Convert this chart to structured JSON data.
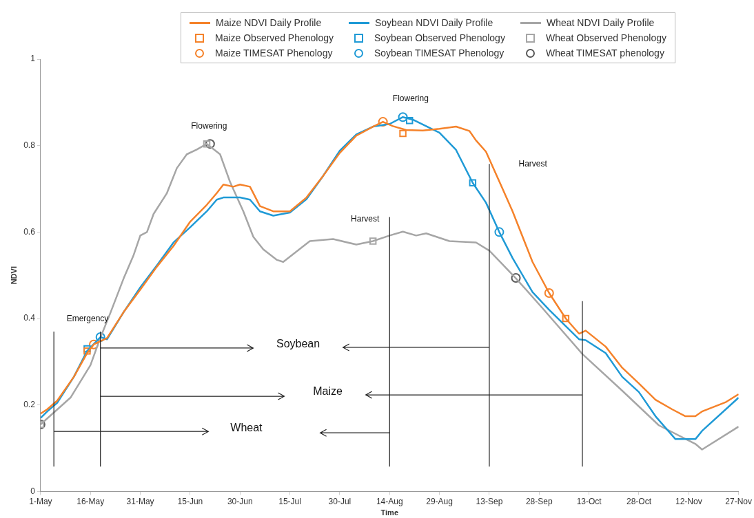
{
  "chart_data": {
    "type": "line",
    "xlabel": "Time",
    "ylabel": "NDVI",
    "xlim": [
      "--05-01",
      "--11-27"
    ],
    "xticks": [
      {
        "value": "--05-01",
        "label": "1-May"
      },
      {
        "value": "--05-16",
        "label": "16-May"
      },
      {
        "value": "--05-31",
        "label": "31-May"
      },
      {
        "value": "--06-15",
        "label": "15-Jun"
      },
      {
        "value": "--06-30",
        "label": "30-Jun"
      },
      {
        "value": "--07-15",
        "label": "15-Jul"
      },
      {
        "value": "--07-30",
        "label": "30-Jul"
      },
      {
        "value": "--08-14",
        "label": "14-Aug"
      },
      {
        "value": "--08-29",
        "label": "29-Aug"
      },
      {
        "value": "--09-13",
        "label": "13-Sep"
      },
      {
        "value": "--09-28",
        "label": "28-Sep"
      },
      {
        "value": "--10-13",
        "label": "13-Oct"
      },
      {
        "value": "--10-28",
        "label": "28-Oct"
      },
      {
        "value": "--11-12",
        "label": "12-Nov"
      },
      {
        "value": "--11-27",
        "label": "27-Nov"
      }
    ],
    "ylim": [
      0,
      1
    ],
    "yticks": [
      0,
      0.2,
      0.4,
      0.6,
      0.8,
      1
    ],
    "grid": false,
    "legend": "top",
    "series": [
      {
        "name": "Maize NDVI Daily Profile",
        "type": "line",
        "marker": "none",
        "color": "#f5822a",
        "x": [
          "--05-01",
          "--05-03",
          "--05-06",
          "--05-11",
          "--05-15",
          "--05-17",
          "--05-21",
          "--05-26",
          "--05-31",
          "--06-05",
          "--06-10",
          "--06-15",
          "--06-20",
          "--06-23",
          "--06-25",
          "--06-28",
          "--06-30",
          "--07-03",
          "--07-06",
          "--07-10",
          "--07-15",
          "--07-20",
          "--07-25",
          "--07-30",
          "--08-04",
          "--08-09",
          "--08-12",
          "--08-15",
          "--08-19",
          "--08-24",
          "--08-29",
          "--09-03",
          "--09-07",
          "--09-09",
          "--09-12",
          "--09-17",
          "--09-20",
          "--09-26",
          "--10-01",
          "--10-06",
          "--10-10",
          "--10-12",
          "--10-18",
          "--10-23",
          "--10-28",
          "--11-02",
          "--11-07",
          "--11-11",
          "--11-14",
          "--11-16",
          "--11-23",
          "--11-27"
        ],
        "values": [
          0.18,
          0.19,
          0.21,
          0.265,
          0.32,
          0.34,
          0.355,
          0.415,
          0.467,
          0.52,
          0.568,
          0.624,
          0.663,
          0.69,
          0.71,
          0.705,
          0.71,
          0.705,
          0.66,
          0.648,
          0.648,
          0.68,
          0.73,
          0.783,
          0.823,
          0.844,
          0.855,
          0.845,
          0.836,
          0.835,
          0.839,
          0.844,
          0.834,
          0.812,
          0.786,
          0.7,
          0.648,
          0.531,
          0.459,
          0.4,
          0.365,
          0.372,
          0.335,
          0.286,
          0.25,
          0.212,
          0.19,
          0.174,
          0.174,
          0.185,
          0.206,
          0.225
        ]
      },
      {
        "name": "Soybean NDVI Daily Profile",
        "type": "line",
        "marker": "none",
        "color": "#1f9ad6",
        "x": [
          "--05-01",
          "--05-03",
          "--05-06",
          "--05-11",
          "--05-15",
          "--05-19",
          "--05-21",
          "--05-26",
          "--05-31",
          "--06-05",
          "--06-10",
          "--06-15",
          "--06-20",
          "--06-23",
          "--06-25",
          "--06-30",
          "--07-03",
          "--07-06",
          "--07-10",
          "--07-15",
          "--07-20",
          "--07-25",
          "--07-30",
          "--08-04",
          "--08-09",
          "--08-14",
          "--08-18",
          "--08-21",
          "--08-29",
          "--09-03",
          "--09-08",
          "--09-12",
          "--09-16",
          "--09-20",
          "--09-26",
          "--10-01",
          "--10-10",
          "--10-12",
          "--10-18",
          "--10-23",
          "--10-28",
          "--11-02",
          "--11-08",
          "--11-14",
          "--11-16",
          "--11-27"
        ],
        "values": [
          0.17,
          0.185,
          0.205,
          0.265,
          0.325,
          0.357,
          0.352,
          0.415,
          0.472,
          0.523,
          0.576,
          0.611,
          0.648,
          0.675,
          0.68,
          0.68,
          0.675,
          0.648,
          0.638,
          0.645,
          0.676,
          0.73,
          0.788,
          0.826,
          0.844,
          0.85,
          0.866,
          0.86,
          0.83,
          0.79,
          0.714,
          0.668,
          0.6,
          0.54,
          0.461,
          0.42,
          0.352,
          0.35,
          0.32,
          0.265,
          0.23,
          0.174,
          0.121,
          0.121,
          0.14,
          0.217
        ]
      },
      {
        "name": "Wheat NDVI Daily Profile",
        "type": "line",
        "marker": "none",
        "color": "#a6a6a6",
        "x": [
          "--05-01",
          "--05-10",
          "--05-16",
          "--05-19",
          "--05-22",
          "--05-26",
          "--05-29",
          "--05-31",
          "--06-02",
          "--06-04",
          "--06-08",
          "--06-11",
          "--06-14",
          "--06-17",
          "--06-20",
          "--06-24",
          "--06-27",
          "--07-01",
          "--07-04",
          "--07-07",
          "--07-11",
          "--07-13",
          "--07-21",
          "--07-28",
          "--08-04",
          "--08-09",
          "--08-14",
          "--08-18",
          "--08-22",
          "--08-25",
          "--09-01",
          "--09-09",
          "--09-13",
          "--09-17",
          "--09-21",
          "--09-29",
          "--10-11",
          "--10-23",
          "--11-03",
          "--11-14",
          "--11-16",
          "--11-27"
        ],
        "values": [
          0.155,
          0.217,
          0.292,
          0.356,
          0.413,
          0.493,
          0.547,
          0.592,
          0.6,
          0.642,
          0.69,
          0.748,
          0.78,
          0.791,
          0.804,
          0.78,
          0.716,
          0.648,
          0.589,
          0.56,
          0.536,
          0.531,
          0.579,
          0.584,
          0.571,
          0.579,
          0.592,
          0.601,
          0.592,
          0.597,
          0.579,
          0.576,
          0.557,
          0.525,
          0.493,
          0.424,
          0.318,
          0.233,
          0.153,
          0.11,
          0.097,
          0.15
        ]
      },
      {
        "name": "Maize Observed Phenology",
        "type": "scatter",
        "marker": "square",
        "color": "#f5822a",
        "x": [
          "--05-15",
          "--08-18",
          "--10-06"
        ],
        "values": [
          0.325,
          0.828,
          0.4
        ]
      },
      {
        "name": "Soybean Observed Phenology",
        "type": "scatter",
        "marker": "square",
        "color": "#1f9ad6",
        "x": [
          "--05-15",
          "--08-20",
          "--09-08"
        ],
        "values": [
          0.33,
          0.858,
          0.714
        ]
      },
      {
        "name": "Wheat Observed Phenology",
        "type": "scatter",
        "marker": "square",
        "color": "#a6a6a6",
        "x": [
          "--05-01",
          "--06-20",
          "--08-09"
        ],
        "values": [
          0.155,
          0.804,
          0.579
        ]
      },
      {
        "name": "Maize TIMESAT Phenology",
        "type": "scatter",
        "marker": "circle",
        "color": "#f5822a",
        "x": [
          "--05-17",
          "--08-12",
          "--10-01"
        ],
        "values": [
          0.34,
          0.855,
          0.459
        ]
      },
      {
        "name": "Soybean TIMESAT Phenology",
        "type": "scatter",
        "marker": "circle",
        "color": "#1f9ad6",
        "x": [
          "--05-19",
          "--08-18",
          "--09-16"
        ],
        "values": [
          0.357,
          0.866,
          0.6
        ]
      },
      {
        "name": "Wheat TIMESAT phenology",
        "type": "scatter",
        "marker": "circle",
        "color": "#595959",
        "x": [
          "--05-01",
          "--06-21",
          "--09-21"
        ],
        "values": [
          0.155,
          0.804,
          0.494
        ]
      }
    ],
    "ref_lines": [
      {
        "axis": "x",
        "value": "--05-05",
        "label": null
      },
      {
        "axis": "x",
        "value": "--05-19",
        "label": null
      },
      {
        "axis": "x",
        "value": "--08-14",
        "label": null
      },
      {
        "axis": "x",
        "value": "--09-13",
        "label": null
      },
      {
        "axis": "x",
        "value": "--10-11",
        "label": null
      }
    ],
    "annotations": [
      "Emergency",
      "Flowering",
      "Flowering",
      "Harvest",
      "Harvest",
      "Soybean",
      "Maize",
      "Wheat"
    ]
  }
}
